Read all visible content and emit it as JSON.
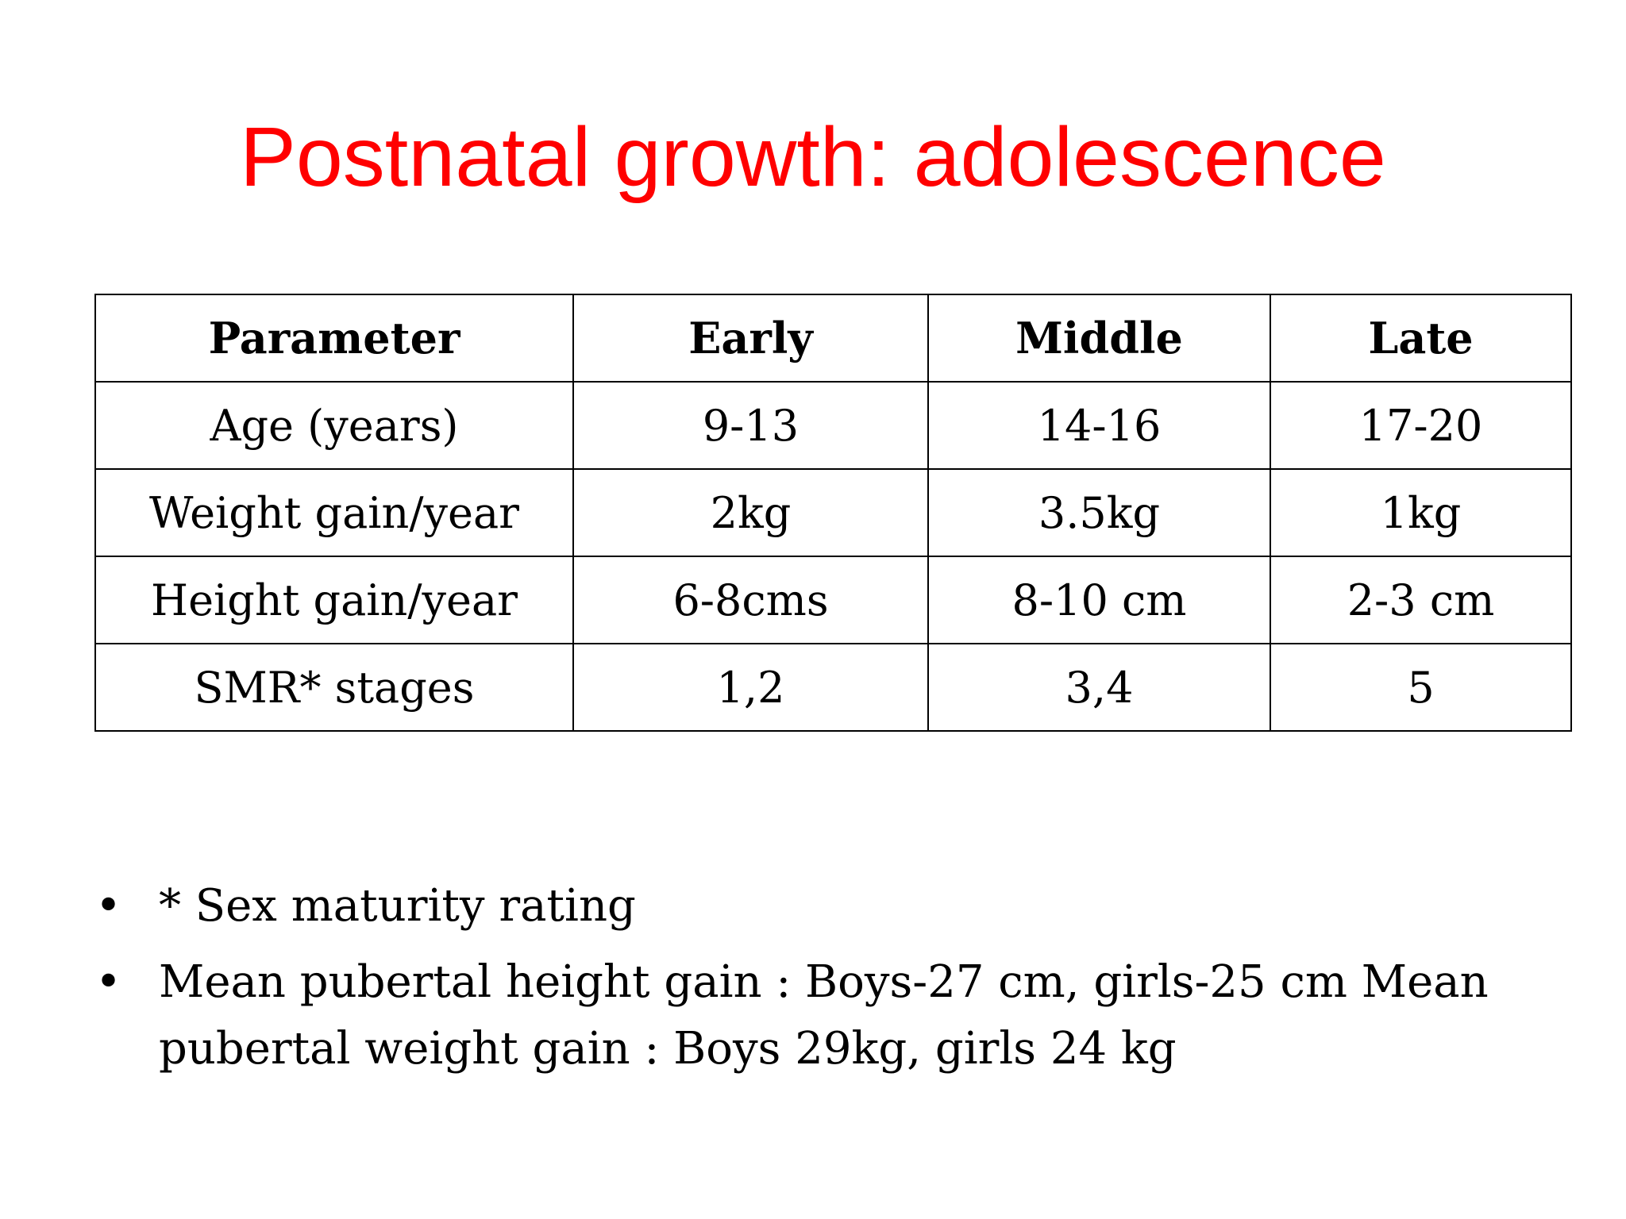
{
  "title": "Postnatal growth: adolescence",
  "table": {
    "headers": [
      "Parameter",
      "Early",
      "Middle",
      "Late"
    ],
    "rows": [
      [
        "Age (years)",
        "9-13",
        "14-16",
        "17-20"
      ],
      [
        "Weight gain/year",
        "2kg",
        "3.5kg",
        "1kg"
      ],
      [
        "Height gain/year",
        "6-8cms",
        "8-10 cm",
        "2-3 cm"
      ],
      [
        "SMR* stages",
        "1,2",
        "3,4",
        "5"
      ]
    ]
  },
  "bullets": [
    "* Sex maturity rating",
    "Mean pubertal height gain : Boys-27 cm, girls-25 cm  Mean pubertal weight gain : Boys 29kg, girls 24 kg"
  ],
  "bullet_glyph": "•"
}
